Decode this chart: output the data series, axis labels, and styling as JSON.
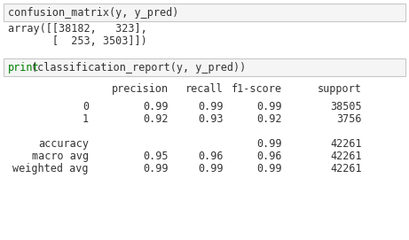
{
  "bg_color": "#ffffff",
  "border_color": "#c8c8c8",
  "cell_bg": "#f5f5f5",
  "code_color_default": "#333333",
  "code_color_keyword": "#008000",
  "cell1_text": "confusion_matrix(y, y_pred)",
  "cell2_keyword": "print",
  "cell2_rest": "(classification_report(y, y_pred))",
  "array_line1": "array([[38182,   323],",
  "array_line2": "       [  253, 3503]])",
  "header_cols": [
    "precision",
    "recall",
    "f1-score",
    "support"
  ],
  "row_labels": [
    "0",
    "1",
    "",
    "accuracy",
    "macro avg",
    "weighted avg"
  ],
  "row_data": [
    [
      "0.99",
      "0.99",
      "0.99",
      "38505"
    ],
    [
      "0.92",
      "0.93",
      "0.92",
      "3756"
    ],
    [
      "",
      "",
      "",
      ""
    ],
    [
      "",
      "",
      "0.99",
      "42261"
    ],
    [
      "0.95",
      "0.96",
      "0.96",
      "42261"
    ],
    [
      "0.99",
      "0.99",
      "0.99",
      "42261"
    ]
  ],
  "font_size": 8.5,
  "mono_font": "DejaVu Sans Mono",
  "fig_width": 4.61,
  "fig_height": 2.71,
  "dpi": 100
}
